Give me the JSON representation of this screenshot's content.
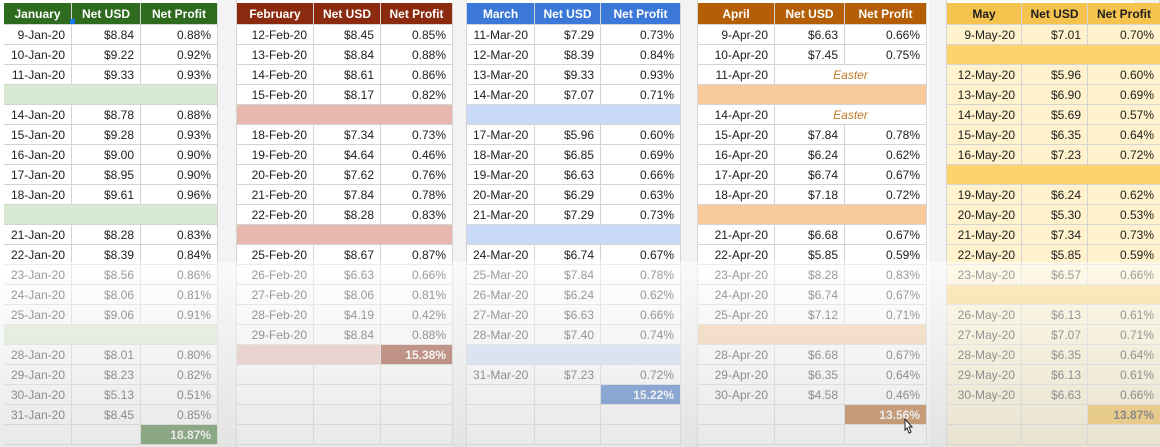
{
  "months": [
    {
      "id": "january",
      "headers": [
        "January",
        "Net USD",
        "Net Profit"
      ],
      "header_color": "#2e6b1f",
      "gap_color": "#d9ead3",
      "total_color": "#2e6b1f",
      "total": "18.87%",
      "rows": [
        [
          "9-Jan-20",
          "$8.84",
          "0.88%"
        ],
        [
          "10-Jan-20",
          "$9.22",
          "0.92%"
        ],
        [
          "11-Jan-20",
          "$9.33",
          "0.93%"
        ],
        null,
        [
          "14-Jan-20",
          "$8.78",
          "0.88%"
        ],
        [
          "15-Jan-20",
          "$9.28",
          "0.93%"
        ],
        [
          "16-Jan-20",
          "$9.00",
          "0.90%"
        ],
        [
          "17-Jan-20",
          "$8.95",
          "0.90%"
        ],
        [
          "18-Jan-20",
          "$9.61",
          "0.96%"
        ],
        null,
        [
          "21-Jan-20",
          "$8.28",
          "0.83%"
        ],
        [
          "22-Jan-20",
          "$8.39",
          "0.84%"
        ],
        [
          "23-Jan-20",
          "$8.56",
          "0.86%"
        ],
        [
          "24-Jan-20",
          "$8.06",
          "0.81%"
        ],
        [
          "25-Jan-20",
          "$9.06",
          "0.91%"
        ],
        null,
        [
          "28-Jan-20",
          "$8.01",
          "0.80%"
        ],
        [
          "29-Jan-20",
          "$8.23",
          "0.82%"
        ],
        [
          "30-Jan-20",
          "$5.13",
          "0.51%"
        ],
        [
          "31-Jan-20",
          "$8.45",
          "0.85%"
        ],
        "total"
      ]
    },
    {
      "id": "february",
      "headers": [
        "February",
        "Net USD",
        "Net Profit"
      ],
      "header_color": "#8b2a0e",
      "gap_color": "#e6b8af",
      "total_color": "#8b2a0e",
      "total": "15.38%",
      "rows": [
        [
          "12-Feb-20",
          "$8.45",
          "0.85%"
        ],
        [
          "13-Feb-20",
          "$8.84",
          "0.88%"
        ],
        [
          "14-Feb-20",
          "$8.61",
          "0.86%"
        ],
        [
          "15-Feb-20",
          "$8.17",
          "0.82%"
        ],
        null,
        [
          "18-Feb-20",
          "$7.34",
          "0.73%"
        ],
        [
          "19-Feb-20",
          "$4.64",
          "0.46%"
        ],
        [
          "20-Feb-20",
          "$7.62",
          "0.76%"
        ],
        [
          "21-Feb-20",
          "$7.84",
          "0.78%"
        ],
        [
          "22-Feb-20",
          "$8.28",
          "0.83%"
        ],
        null,
        [
          "25-Feb-20",
          "$8.67",
          "0.87%"
        ],
        [
          "26-Feb-20",
          "$6.63",
          "0.66%"
        ],
        [
          "27-Feb-20",
          "$8.06",
          "0.81%"
        ],
        [
          "28-Feb-20",
          "$4.19",
          "0.42%"
        ],
        [
          "29-Feb-20",
          "$8.84",
          "0.88%"
        ],
        "gap-total",
        [],
        [],
        [],
        []
      ]
    },
    {
      "id": "march",
      "headers": [
        "March",
        "Net USD",
        "Net Profit"
      ],
      "header_color": "#3c78d8",
      "gap_color": "#c9daf8",
      "total_color": "#1f5fbf",
      "total": "15.22%",
      "rows": [
        [
          "11-Mar-20",
          "$7.29",
          "0.73%"
        ],
        [
          "12-Mar-20",
          "$8.39",
          "0.84%"
        ],
        [
          "13-Mar-20",
          "$9.33",
          "0.93%"
        ],
        [
          "14-Mar-20",
          "$7.07",
          "0.71%"
        ],
        null,
        [
          "17-Mar-20",
          "$5.96",
          "0.60%"
        ],
        [
          "18-Mar-20",
          "$6.85",
          "0.69%"
        ],
        [
          "19-Mar-20",
          "$6.63",
          "0.66%"
        ],
        [
          "20-Mar-20",
          "$6.29",
          "0.63%"
        ],
        [
          "21-Mar-20",
          "$7.29",
          "0.73%"
        ],
        null,
        [
          "24-Mar-20",
          "$6.74",
          "0.67%"
        ],
        [
          "25-Mar-20",
          "$7.84",
          "0.78%"
        ],
        [
          "26-Mar-20",
          "$6.24",
          "0.62%"
        ],
        [
          "27-Mar-20",
          "$6.63",
          "0.66%"
        ],
        [
          "28-Mar-20",
          "$7.40",
          "0.74%"
        ],
        null,
        [
          "31-Mar-20",
          "$7.23",
          "0.72%"
        ],
        "total",
        [],
        []
      ]
    },
    {
      "id": "april",
      "headers": [
        "April",
        "Net USD",
        "Net Profit"
      ],
      "header_color": "#b45f06",
      "gap_color": "#f9cb9c",
      "total_color": "#a64d00",
      "total": "13.56%",
      "rows": [
        [
          "9-Apr-20",
          "$6.63",
          "0.66%"
        ],
        [
          "10-Apr-20",
          "$7.45",
          "0.75%"
        ],
        [
          "11-Apr-20",
          "Easter",
          ""
        ],
        null,
        [
          "14-Apr-20",
          "Easter",
          ""
        ],
        [
          "15-Apr-20",
          "$7.84",
          "0.78%"
        ],
        [
          "16-Apr-20",
          "$6.24",
          "0.62%"
        ],
        [
          "17-Apr-20",
          "$6.74",
          "0.67%"
        ],
        [
          "18-Apr-20",
          "$7.18",
          "0.72%"
        ],
        null,
        [
          "21-Apr-20",
          "$6.68",
          "0.67%"
        ],
        [
          "22-Apr-20",
          "$5.85",
          "0.59%"
        ],
        [
          "23-Apr-20",
          "$8.28",
          "0.83%"
        ],
        [
          "24-Apr-20",
          "$6.74",
          "0.67%"
        ],
        [
          "25-Apr-20",
          "$7.12",
          "0.71%"
        ],
        null,
        [
          "28-Apr-20",
          "$6.68",
          "0.67%"
        ],
        [
          "29-Apr-20",
          "$6.35",
          "0.64%"
        ],
        [
          "30-Apr-20",
          "$4.58",
          "0.46%"
        ],
        "total",
        []
      ]
    },
    {
      "id": "may",
      "headers": [
        "May",
        "Net USD",
        "Net Profit"
      ],
      "header_color": "#f6c34f",
      "header_text_color": "#202020",
      "body_color": "#fff2cc",
      "gap_color": "#fbd46e",
      "total_color": "#f6b62a",
      "total_text_color": "#202020",
      "total": "13.87%",
      "rows": [
        [
          "9-May-20",
          "$7.01",
          "0.70%"
        ],
        null,
        [
          "12-May-20",
          "$5.96",
          "0.60%"
        ],
        [
          "13-May-20",
          "$6.90",
          "0.69%"
        ],
        [
          "14-May-20",
          "$5.69",
          "0.57%"
        ],
        [
          "15-May-20",
          "$6.35",
          "0.64%"
        ],
        [
          "16-May-20",
          "$7.23",
          "0.72%"
        ],
        null,
        [
          "19-May-20",
          "$6.24",
          "0.62%"
        ],
        [
          "20-May-20",
          "$5.30",
          "0.53%"
        ],
        [
          "21-May-20",
          "$7.34",
          "0.73%"
        ],
        [
          "22-May-20",
          "$5.85",
          "0.59%"
        ],
        [
          "23-May-20",
          "$6.57",
          "0.66%"
        ],
        null,
        [
          "26-May-20",
          "$6.13",
          "0.61%"
        ],
        [
          "27-May-20",
          "$7.07",
          "0.71%"
        ],
        [
          "28-May-20",
          "$6.35",
          "0.64%"
        ],
        [
          "29-May-20",
          "$6.13",
          "0.61%"
        ],
        [
          "30-May-20",
          "$6.63",
          "0.66%"
        ],
        "total",
        []
      ]
    }
  ]
}
